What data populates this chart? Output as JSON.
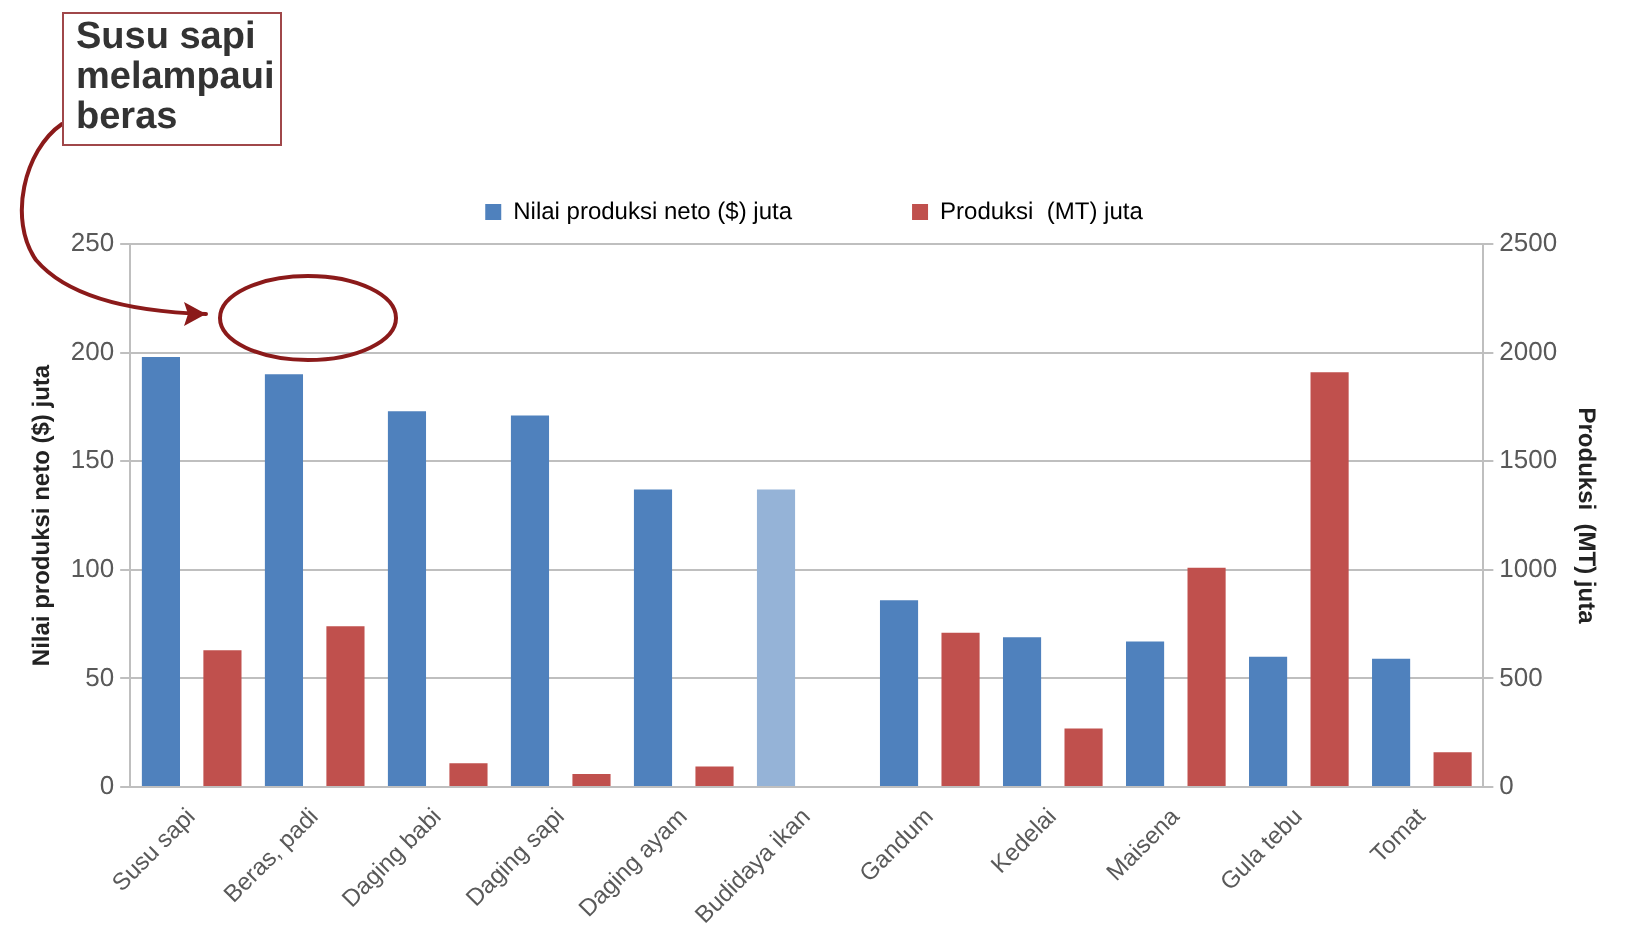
{
  "chart_data": {
    "type": "bar",
    "categories": [
      "Susu sapi",
      "Beras, padi",
      "Daging babi",
      "Daging sapi",
      "Daging ayam",
      "Budidaya ikan",
      "Gandum",
      "Kedelai",
      "Maisena",
      "Gula tebu",
      "Tomat"
    ],
    "series": [
      {
        "name": "Nilai produksi neto ($) juta",
        "color": "#4f81bd",
        "colors": [
          "#4f81bd",
          "#4f81bd",
          "#4f81bd",
          "#4f81bd",
          "#4f81bd",
          "#95b3d7",
          "#4f81bd",
          "#4f81bd",
          "#4f81bd",
          "#4f81bd",
          "#4f81bd"
        ],
        "values": [
          198,
          190,
          173,
          171,
          137,
          137,
          86,
          69,
          67,
          60,
          59
        ]
      },
      {
        "name": "Produksi  (MT) juta",
        "color": "#c0504d",
        "axis": "y2",
        "values": [
          630,
          740,
          110,
          60,
          95,
          null,
          710,
          270,
          1010,
          1910,
          160
        ]
      }
    ],
    "ylabel": "Nilai produksi neto ($) juta",
    "y2label": "Produksi  (MT) juta",
    "ylim": [
      0,
      250
    ],
    "yticks": [
      0,
      50,
      100,
      150,
      200,
      250
    ],
    "y2lim": [
      0,
      2500
    ],
    "y2ticks": [
      0,
      500,
      1000,
      1500,
      2000,
      2500
    ],
    "grid": "y",
    "legend": "top",
    "annotations": [
      "Susu sapi melampaui beras"
    ]
  }
}
